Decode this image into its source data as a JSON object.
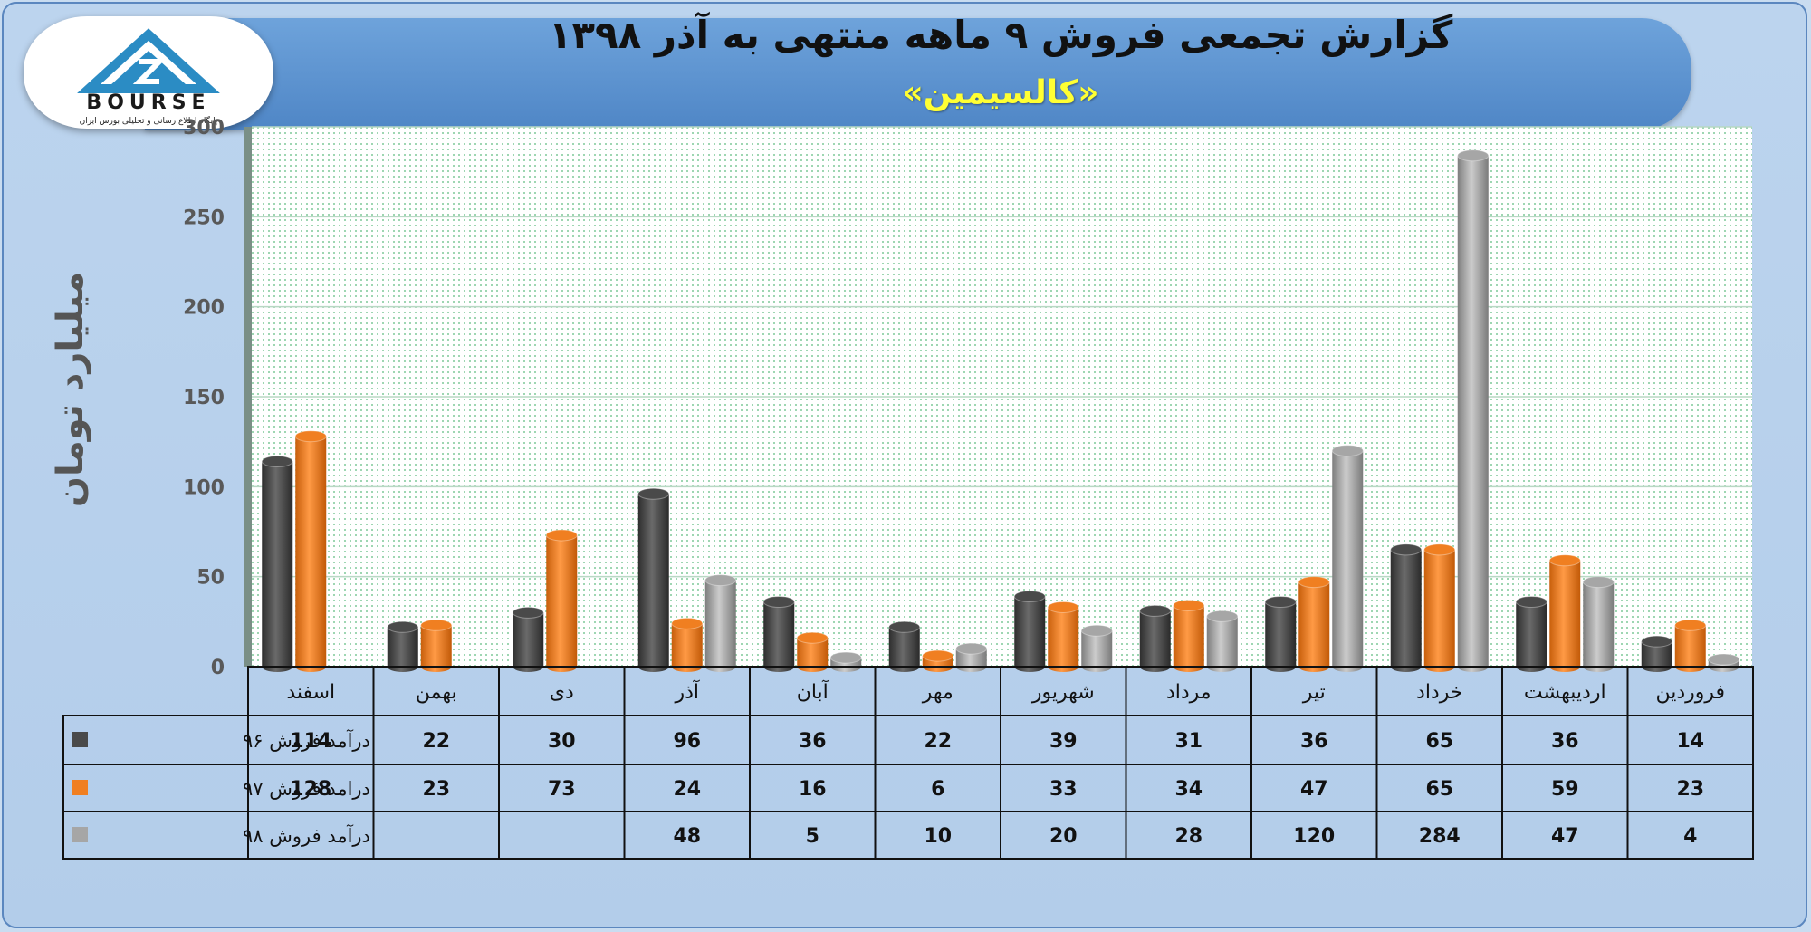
{
  "header": {
    "title": "گزارش تجمعی فروش ۹ ماهه منتهی به آذر ۱۳۹۸",
    "subtitle": "«کالسیمین»"
  },
  "logo": {
    "wordmark": "BOURSE",
    "tagline": "پایگاه اطلاع رسانی و تحلیلی بورس ایران",
    "colors": {
      "mark": "#2b8cc4",
      "text": "#1a1a1a"
    }
  },
  "chart_data": {
    "type": "bar",
    "ylabel": "میلیارد تومان",
    "ylim": [
      0,
      300
    ],
    "yticks": [
      0,
      50,
      100,
      150,
      200,
      250,
      300
    ],
    "grid": true,
    "legend_placement": "data-table-left",
    "categories": [
      "فروردین",
      "اردیبهشت",
      "خرداد",
      "تیر",
      "مرداد",
      "شهریور",
      "مهر",
      "آبان",
      "آذر",
      "دی",
      "بهمن",
      "اسفند"
    ],
    "series": [
      {
        "name": "درآمد فروش ۹۶",
        "color": "#4a4a4a",
        "values": [
          14,
          36,
          65,
          36,
          31,
          39,
          22,
          36,
          96,
          30,
          22,
          114
        ]
      },
      {
        "name": "درامد فروش ۹۷",
        "color": "#f07f21",
        "values": [
          23,
          59,
          65,
          47,
          34,
          33,
          6,
          16,
          24,
          73,
          23,
          128
        ]
      },
      {
        "name": "درآمد فروش ۹۸",
        "color": "#a6a6a6",
        "values": [
          4,
          47,
          284,
          120,
          28,
          20,
          10,
          5,
          48,
          null,
          null,
          null
        ]
      }
    ]
  }
}
